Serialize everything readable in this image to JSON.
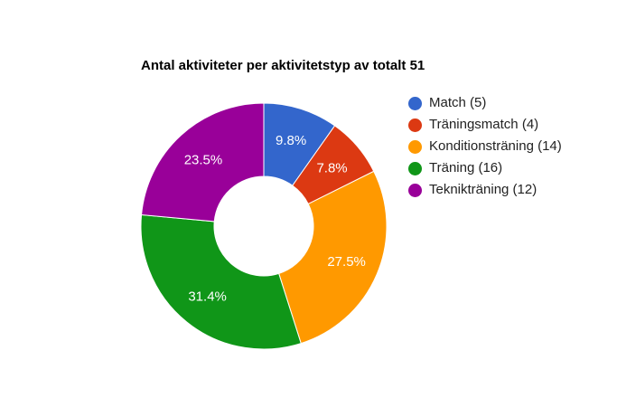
{
  "chart_data": {
    "type": "pie",
    "donut": true,
    "title": "Antal aktiviteter per aktivitetstyp av totalt 51",
    "legend_position": "right",
    "slices": [
      {
        "label": "Match (5)",
        "value": 5,
        "percent_label": "9.8%",
        "color": "#3366cc"
      },
      {
        "label": "Träningsmatch (4)",
        "value": 4,
        "percent_label": "7.8%",
        "color": "#dc3912"
      },
      {
        "label": "Konditionsträning (14)",
        "value": 14,
        "percent_label": "27.5%",
        "color": "#ff9900"
      },
      {
        "label": "Träning (16)",
        "value": 16,
        "percent_label": "31.4%",
        "color": "#109618"
      },
      {
        "label": "Teknikträning (12)",
        "value": 12,
        "percent_label": "23.5%",
        "color": "#990099"
      }
    ]
  }
}
